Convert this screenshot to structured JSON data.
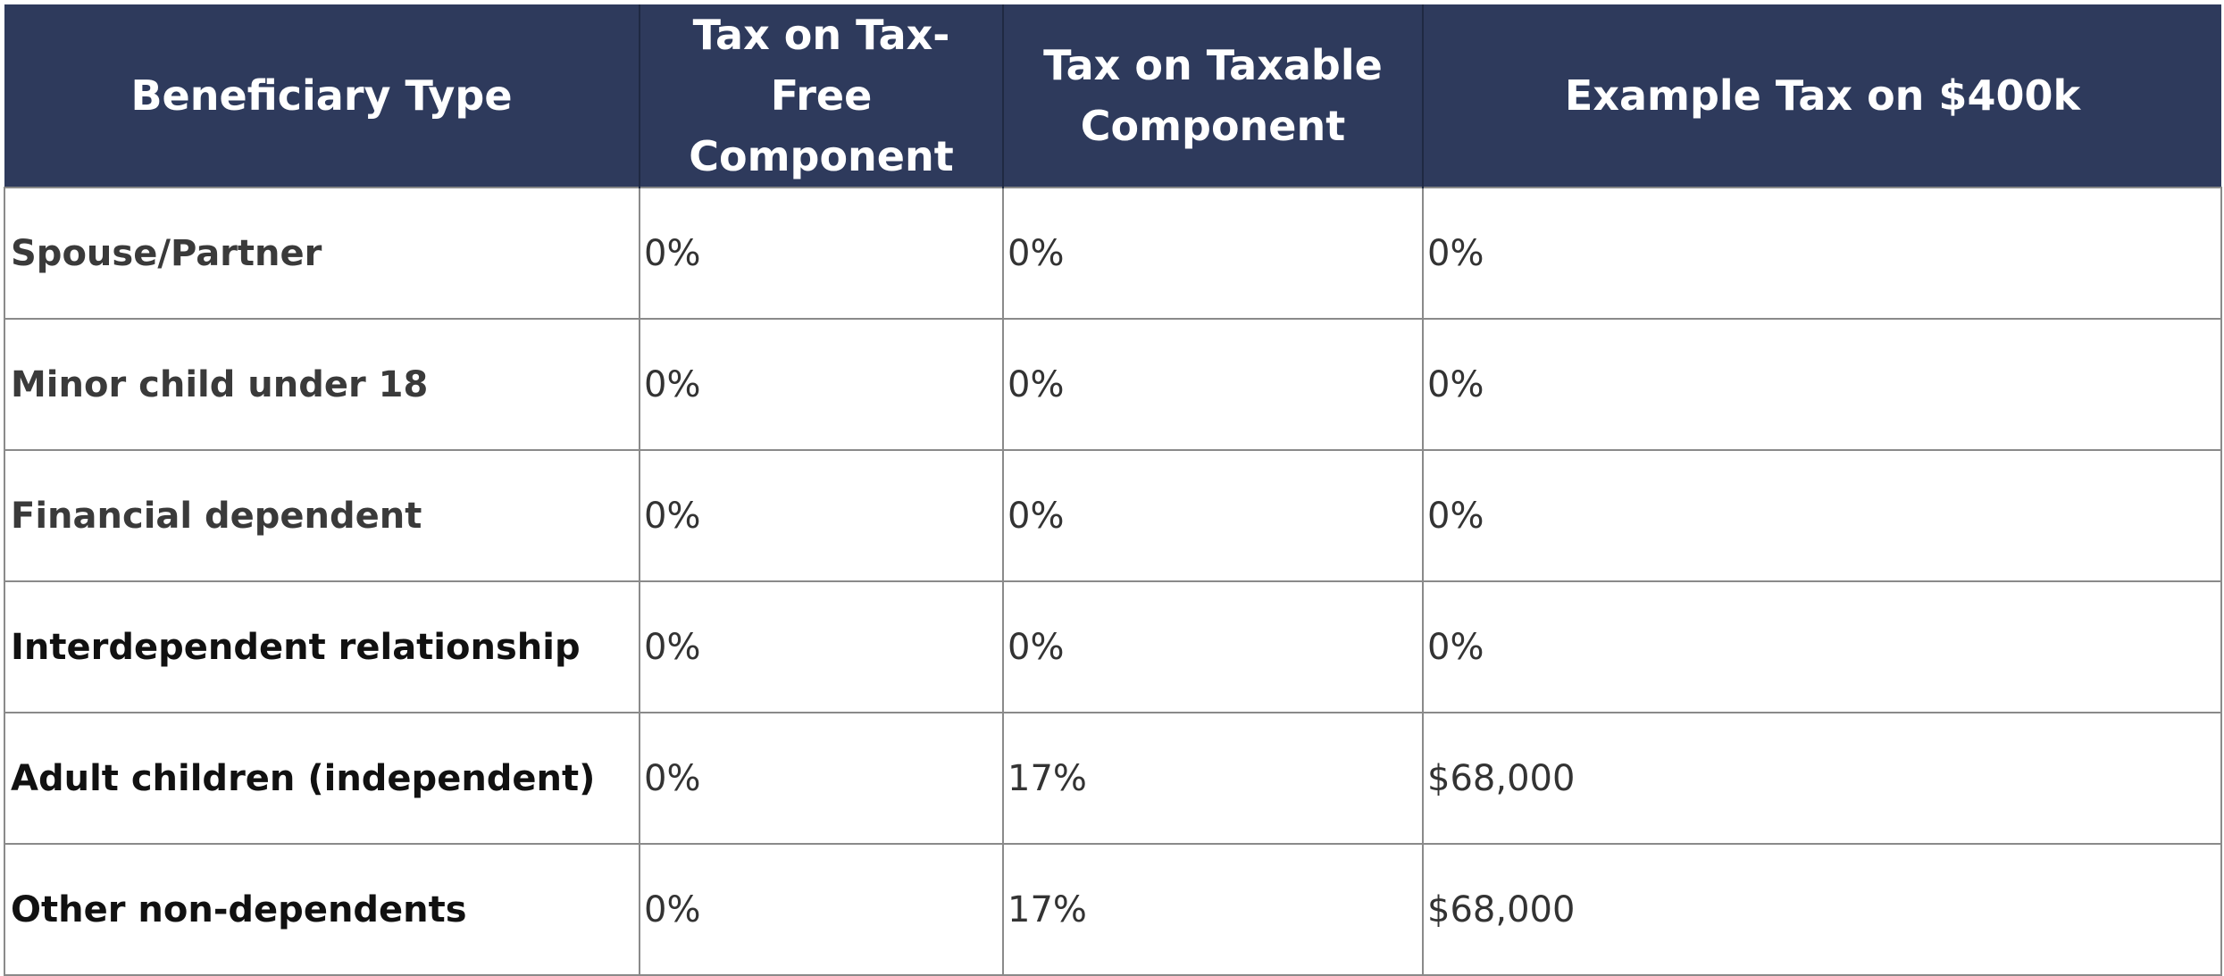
{
  "table": {
    "headers": [
      "Beneficiary Type",
      "Tax on Tax-Free Component",
      "Tax on Taxable Component",
      "Example Tax on $400k"
    ],
    "rows": [
      [
        "Spouse/Partner",
        "0%",
        "0%",
        "0%"
      ],
      [
        "Minor child under 18",
        "0%",
        "0%",
        "0%"
      ],
      [
        "Financial dependent",
        "0%",
        "0%",
        "0%"
      ],
      [
        "Interdependent relationship",
        "0%",
        "0%",
        "0%"
      ],
      [
        "Adult children (independent)",
        "0%",
        "17%",
        "$68,000"
      ],
      [
        "Other non-dependents",
        "0%",
        "17%",
        "$68,000"
      ]
    ]
  },
  "colors": {
    "header_background": "#2e3a5c",
    "header_text": "#ffffff",
    "grid_line": "#8a8a8a"
  }
}
